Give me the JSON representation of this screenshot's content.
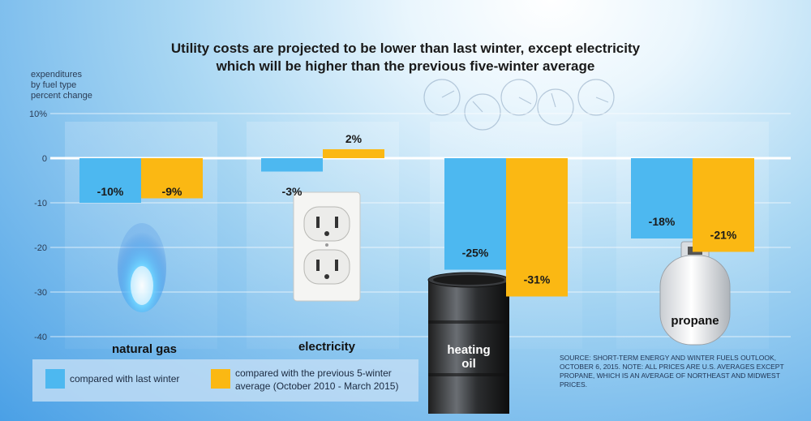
{
  "title_line1": "Utility costs are projected to be lower than last winter, except electricity",
  "title_line2": "which will be higher than the previous five-winter average",
  "ylabel_lines": [
    "expenditures",
    "by fuel type",
    "percent change"
  ],
  "source_note": "SOURCE: SHORT-TERM ENERGY AND WINTER FUELS OUTLOOK, OCTOBER 6, 2015. NOTE: ALL PRICES ARE U.S. AVERAGES EXCEPT PROPANE, WHICH IS AN AVERAGE OF NORTHEAST AND MIDWEST PRICES.",
  "colors": {
    "last_winter": "#4db8f0",
    "five_winter": "#fbb813",
    "text": "#1a1a1a",
    "grid": "#ffffff"
  },
  "icons": [
    "flame-icon",
    "outlet-icon",
    "oil-barrel-icon",
    "propane-tank-icon",
    "gas-meter-icon"
  ],
  "chart_data": {
    "type": "bar",
    "categories": [
      "natural gas",
      "electricity",
      "heating oil",
      "propane"
    ],
    "series": [
      {
        "name": "compared with last winter",
        "values": [
          -10,
          -3,
          -25,
          -18
        ],
        "labels": [
          "-10%",
          "-3%",
          "-25%",
          "-18%"
        ],
        "color": "#4db8f0"
      },
      {
        "name": "compared with the previous 5-winter average (October 2010 - March 2015)",
        "values": [
          -9,
          2,
          -31,
          -21
        ],
        "labels": [
          "-9%",
          "2%",
          "-31%",
          "-21%"
        ],
        "color": "#fbb813"
      }
    ],
    "ylim": [
      -40,
      10
    ],
    "ticks": [
      10,
      0,
      -10,
      -20,
      -30,
      -40
    ],
    "tick_labels": [
      "10%",
      "0",
      "-10",
      "-20",
      "-30",
      "-40"
    ],
    "grid": true,
    "legend": {
      "position": "bottom-left",
      "items": [
        {
          "lines": [
            "compared with last winter"
          ]
        },
        {
          "lines": [
            "compared with the previous 5-winter",
            "average (October 2010 - March 2015)"
          ]
        }
      ]
    }
  }
}
